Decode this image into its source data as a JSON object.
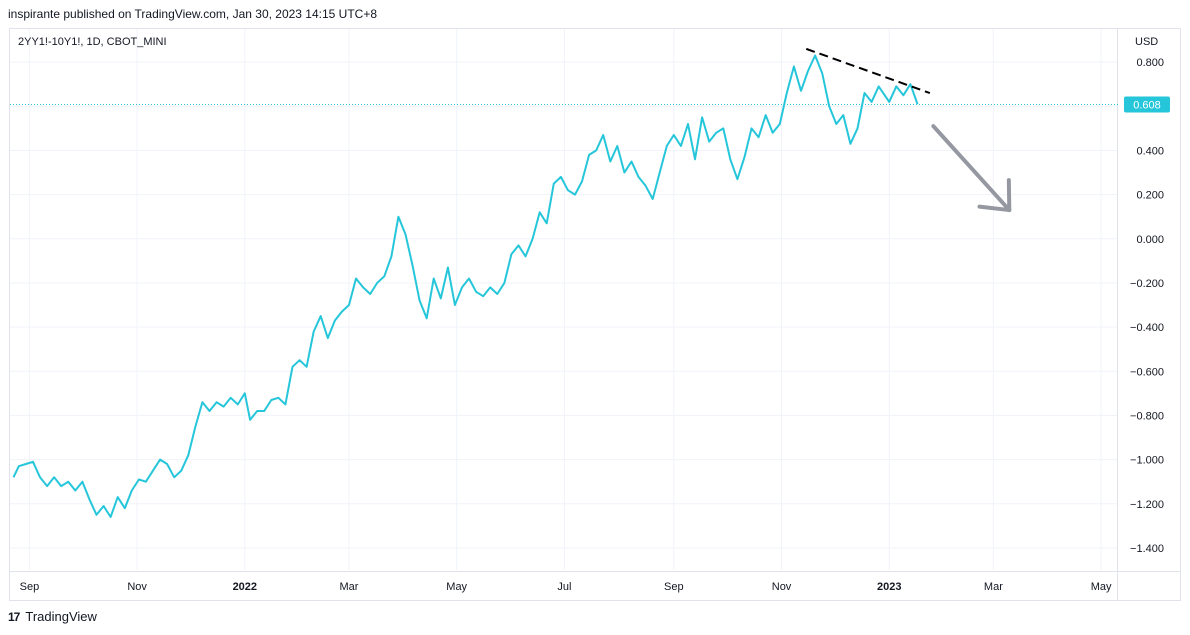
{
  "header": {
    "published": "inspirante published on TradingView.com, Jan 30, 2023 14:15 UTC+8"
  },
  "brand": {
    "icon": "tradingview-logo-icon",
    "name": "TradingView"
  },
  "chart_data": {
    "type": "line",
    "title": "2YY1!-10Y1!, 1D, CBOT_MINI",
    "currency": "USD",
    "last_value_label": "0.608",
    "ylim": [
      -1.5,
      0.95
    ],
    "y_ticks": [
      "0.800",
      "0.600",
      "0.400",
      "0.200",
      "0.000",
      "−0.200",
      "−0.400",
      "−0.600",
      "−0.800",
      "−1.000",
      "−1.200",
      "−1.400"
    ],
    "y_tick_values": [
      0.8,
      0.6,
      0.4,
      0.2,
      0.0,
      -0.2,
      -0.4,
      -0.6,
      -0.8,
      -1.0,
      -1.2,
      -1.4
    ],
    "x_range": [
      "2021-08-21",
      "2023-05-10"
    ],
    "x_ticks": [
      {
        "label": "Sep",
        "date": "2021-09-01",
        "bold": false
      },
      {
        "label": "Nov",
        "date": "2021-11-01",
        "bold": false
      },
      {
        "label": "2022",
        "date": "2022-01-01",
        "bold": true
      },
      {
        "label": "Mar",
        "date": "2022-03-01",
        "bold": false
      },
      {
        "label": "May",
        "date": "2022-05-01",
        "bold": false
      },
      {
        "label": "Jul",
        "date": "2022-07-01",
        "bold": false
      },
      {
        "label": "Sep",
        "date": "2022-09-01",
        "bold": false
      },
      {
        "label": "Nov",
        "date": "2022-11-01",
        "bold": false
      },
      {
        "label": "2023",
        "date": "2023-01-01",
        "bold": true
      },
      {
        "label": "Mar",
        "date": "2023-03-01",
        "bold": false
      },
      {
        "label": "May",
        "date": "2023-05-01",
        "bold": false
      }
    ],
    "grid": true,
    "colors": {
      "line": "#26c6da",
      "label_bg": "#26c6da",
      "trendline": "#000000",
      "arrow": "#9598a1",
      "grid": "#f0f3fa"
    },
    "series": [
      {
        "points": [
          [
            "2021-08-23",
            -1.08
          ],
          [
            "2021-08-26",
            -1.03
          ],
          [
            "2021-08-30",
            -1.02
          ],
          [
            "2021-09-03",
            -1.01
          ],
          [
            "2021-09-07",
            -1.08
          ],
          [
            "2021-09-11",
            -1.12
          ],
          [
            "2021-09-15",
            -1.08
          ],
          [
            "2021-09-19",
            -1.12
          ],
          [
            "2021-09-23",
            -1.1
          ],
          [
            "2021-09-27",
            -1.14
          ],
          [
            "2021-10-01",
            -1.1
          ],
          [
            "2021-10-05",
            -1.18
          ],
          [
            "2021-10-09",
            -1.25
          ],
          [
            "2021-10-13",
            -1.21
          ],
          [
            "2021-10-17",
            -1.26
          ],
          [
            "2021-10-21",
            -1.17
          ],
          [
            "2021-10-25",
            -1.22
          ],
          [
            "2021-10-29",
            -1.14
          ],
          [
            "2021-11-02",
            -1.09
          ],
          [
            "2021-11-06",
            -1.1
          ],
          [
            "2021-11-10",
            -1.05
          ],
          [
            "2021-11-14",
            -1.0
          ],
          [
            "2021-11-18",
            -1.02
          ],
          [
            "2021-11-22",
            -1.08
          ],
          [
            "2021-11-26",
            -1.05
          ],
          [
            "2021-11-30",
            -0.98
          ],
          [
            "2021-12-04",
            -0.85
          ],
          [
            "2021-12-08",
            -0.74
          ],
          [
            "2021-12-12",
            -0.78
          ],
          [
            "2021-12-16",
            -0.74
          ],
          [
            "2021-12-20",
            -0.76
          ],
          [
            "2021-12-24",
            -0.72
          ],
          [
            "2021-12-28",
            -0.75
          ],
          [
            "2022-01-01",
            -0.7
          ],
          [
            "2022-01-04",
            -0.82
          ],
          [
            "2022-01-08",
            -0.78
          ],
          [
            "2022-01-12",
            -0.78
          ],
          [
            "2022-01-16",
            -0.73
          ],
          [
            "2022-01-20",
            -0.72
          ],
          [
            "2022-01-24",
            -0.75
          ],
          [
            "2022-01-28",
            -0.58
          ],
          [
            "2022-02-01",
            -0.55
          ],
          [
            "2022-02-05",
            -0.58
          ],
          [
            "2022-02-09",
            -0.42
          ],
          [
            "2022-02-13",
            -0.35
          ],
          [
            "2022-02-17",
            -0.45
          ],
          [
            "2022-02-21",
            -0.37
          ],
          [
            "2022-02-25",
            -0.33
          ],
          [
            "2022-03-01",
            -0.3
          ],
          [
            "2022-03-05",
            -0.18
          ],
          [
            "2022-03-09",
            -0.22
          ],
          [
            "2022-03-13",
            -0.25
          ],
          [
            "2022-03-17",
            -0.2
          ],
          [
            "2022-03-21",
            -0.17
          ],
          [
            "2022-03-25",
            -0.08
          ],
          [
            "2022-03-29",
            0.1
          ],
          [
            "2022-04-02",
            0.02
          ],
          [
            "2022-04-06",
            -0.12
          ],
          [
            "2022-04-10",
            -0.28
          ],
          [
            "2022-04-14",
            -0.36
          ],
          [
            "2022-04-18",
            -0.18
          ],
          [
            "2022-04-22",
            -0.27
          ],
          [
            "2022-04-26",
            -0.13
          ],
          [
            "2022-04-30",
            -0.3
          ],
          [
            "2022-05-04",
            -0.22
          ],
          [
            "2022-05-08",
            -0.18
          ],
          [
            "2022-05-12",
            -0.24
          ],
          [
            "2022-05-16",
            -0.26
          ],
          [
            "2022-05-20",
            -0.22
          ],
          [
            "2022-05-24",
            -0.25
          ],
          [
            "2022-05-28",
            -0.2
          ],
          [
            "2022-06-01",
            -0.07
          ],
          [
            "2022-06-05",
            -0.03
          ],
          [
            "2022-06-09",
            -0.08
          ],
          [
            "2022-06-13",
            0.0
          ],
          [
            "2022-06-17",
            0.12
          ],
          [
            "2022-06-21",
            0.07
          ],
          [
            "2022-06-25",
            0.25
          ],
          [
            "2022-06-29",
            0.28
          ],
          [
            "2022-07-03",
            0.22
          ],
          [
            "2022-07-07",
            0.2
          ],
          [
            "2022-07-11",
            0.26
          ],
          [
            "2022-07-15",
            0.38
          ],
          [
            "2022-07-19",
            0.4
          ],
          [
            "2022-07-23",
            0.47
          ],
          [
            "2022-07-27",
            0.35
          ],
          [
            "2022-07-31",
            0.42
          ],
          [
            "2022-08-04",
            0.3
          ],
          [
            "2022-08-08",
            0.35
          ],
          [
            "2022-08-12",
            0.28
          ],
          [
            "2022-08-16",
            0.24
          ],
          [
            "2022-08-20",
            0.18
          ],
          [
            "2022-08-24",
            0.3
          ],
          [
            "2022-08-28",
            0.42
          ],
          [
            "2022-09-01",
            0.47
          ],
          [
            "2022-09-05",
            0.42
          ],
          [
            "2022-09-09",
            0.52
          ],
          [
            "2022-09-13",
            0.36
          ],
          [
            "2022-09-17",
            0.55
          ],
          [
            "2022-09-21",
            0.44
          ],
          [
            "2022-09-25",
            0.48
          ],
          [
            "2022-09-29",
            0.5
          ],
          [
            "2022-10-03",
            0.36
          ],
          [
            "2022-10-07",
            0.27
          ],
          [
            "2022-10-11",
            0.37
          ],
          [
            "2022-10-15",
            0.5
          ],
          [
            "2022-10-19",
            0.46
          ],
          [
            "2022-10-23",
            0.56
          ],
          [
            "2022-10-27",
            0.48
          ],
          [
            "2022-10-31",
            0.52
          ],
          [
            "2022-11-04",
            0.66
          ],
          [
            "2022-11-08",
            0.78
          ],
          [
            "2022-11-12",
            0.67
          ],
          [
            "2022-11-16",
            0.76
          ],
          [
            "2022-11-20",
            0.83
          ],
          [
            "2022-11-24",
            0.75
          ],
          [
            "2022-11-28",
            0.6
          ],
          [
            "2022-12-02",
            0.52
          ],
          [
            "2022-12-06",
            0.56
          ],
          [
            "2022-12-10",
            0.43
          ],
          [
            "2022-12-14",
            0.5
          ],
          [
            "2022-12-18",
            0.66
          ],
          [
            "2022-12-22",
            0.62
          ],
          [
            "2022-12-26",
            0.69
          ],
          [
            "2023-01-01",
            0.62
          ],
          [
            "2023-01-05",
            0.69
          ],
          [
            "2023-01-09",
            0.65
          ],
          [
            "2023-01-13",
            0.7
          ],
          [
            "2023-01-17",
            0.61
          ]
        ]
      }
    ],
    "annotations": {
      "trendline": [
        [
          "2022-11-15",
          0.86
        ],
        [
          "2023-01-24",
          0.66
        ]
      ],
      "arrow": [
        [
          "2023-01-26",
          0.51
        ],
        [
          "2023-03-10",
          0.13
        ]
      ]
    }
  }
}
